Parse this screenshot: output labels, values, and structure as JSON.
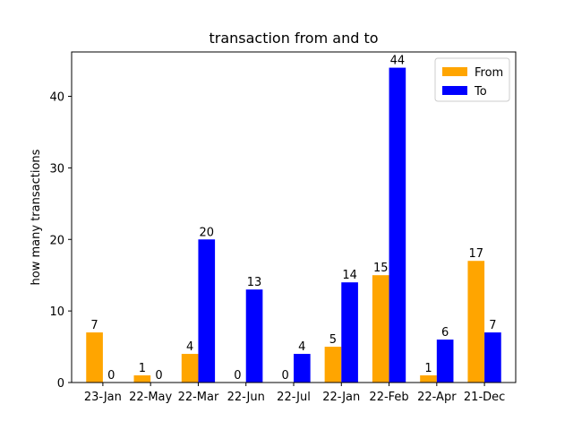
{
  "chart_data": {
    "type": "bar",
    "title": "transaction from and to",
    "xlabel": "",
    "ylabel": "how many transactions",
    "categories": [
      "23-Jan",
      "22-May",
      "22-Mar",
      "22-Jun",
      "22-Jul",
      "22-Jan",
      "22-Feb",
      "22-Apr",
      "21-Dec"
    ],
    "series": [
      {
        "name": "From",
        "color": "#ffa500",
        "values": [
          7,
          1,
          4,
          0,
          0,
          5,
          15,
          1,
          17
        ]
      },
      {
        "name": "To",
        "color": "#0000ff",
        "values": [
          0,
          0,
          20,
          13,
          4,
          14,
          44,
          6,
          7
        ]
      }
    ],
    "ylim": [
      0,
      46.2
    ],
    "yticks": [
      0,
      10,
      20,
      30,
      40
    ],
    "legend_position": "top-right",
    "grid": false
  }
}
